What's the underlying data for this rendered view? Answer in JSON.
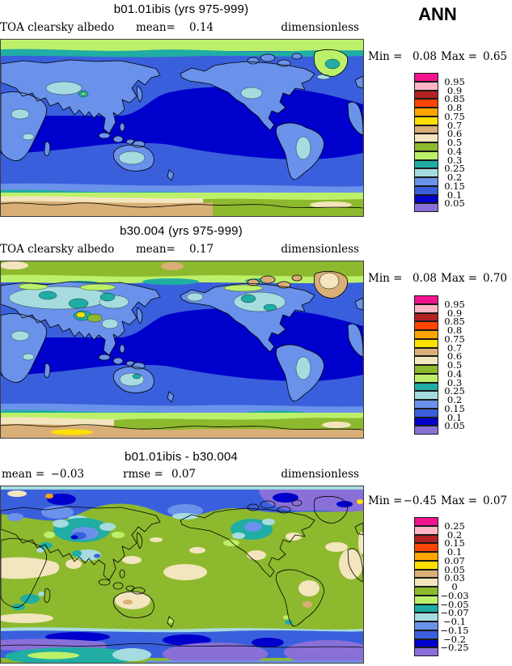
{
  "season": "ANN",
  "palette": [
    "#F2138E",
    "#FFB5C5",
    "#B22222",
    "#FF4500",
    "#FFA500",
    "#FFDF00",
    "#D8AF76",
    "#F3E5BE",
    "#8DB92E",
    "#BDF06A",
    "#1FADA4",
    "#A6DCDF",
    "#6A92EA",
    "#3A5FDC",
    "#0000CC",
    "#8970D8"
  ],
  "panels": [
    {
      "title": "b01.01ibis (yrs 975-999)",
      "var_label": "TOA clearsky albedo",
      "stats": [
        {
          "label": "mean=",
          "value": "0.14"
        }
      ],
      "units": "dimensionless",
      "min_label": "Min =",
      "min_value": "0.08",
      "max_label": "Max =",
      "max_value": "0.65",
      "legend_labels": [
        "0.95",
        "0.9",
        "0.85",
        "0.8",
        "0.75",
        "0.7",
        "0.6",
        "0.5",
        "0.4",
        "0.3",
        "0.25",
        "0.2",
        "0.15",
        "0.1",
        "0.05"
      ]
    },
    {
      "title": "b30.004 (yrs 975-999)",
      "var_label": "TOA clearsky albedo",
      "stats": [
        {
          "label": "mean=",
          "value": "0.17"
        }
      ],
      "units": "dimensionless",
      "min_label": "Min =",
      "min_value": "0.08",
      "max_label": "Max =",
      "max_value": "0.70",
      "legend_labels": [
        "0.95",
        "0.9",
        "0.85",
        "0.8",
        "0.75",
        "0.7",
        "0.6",
        "0.5",
        "0.4",
        "0.3",
        "0.25",
        "0.2",
        "0.15",
        "0.1",
        "0.05"
      ]
    },
    {
      "title": "b01.01ibis - b30.004",
      "var_label": "",
      "stats": [
        {
          "label": "mean =",
          "value": "−0.03"
        },
        {
          "label": "rmse =",
          "value": "0.07"
        }
      ],
      "units": "dimensionless",
      "min_label": "Min =",
      "min_value": "−0.45",
      "max_label": "Max =",
      "max_value": "0.07",
      "legend_labels": [
        "0.25",
        "0.2",
        "0.15",
        "0.1",
        "0.07",
        "0.05",
        "0.03",
        "0",
        "−0.03",
        "−0.05",
        "−0.07",
        "−0.1",
        "−0.15",
        "−0.2",
        "−0.25"
      ]
    }
  ],
  "chart_data": [
    {
      "type": "heatmap",
      "subtype": "filled-contour global map, equirectangular, Pacific-centered",
      "title": "b01.01ibis (yrs 975-999)",
      "variable": "TOA clearsky albedo",
      "season": "ANN",
      "units": "dimensionless",
      "mean": 0.14,
      "min": 0.08,
      "max": 0.65,
      "contour_levels": [
        0.05,
        0.1,
        0.15,
        0.2,
        0.25,
        0.3,
        0.4,
        0.5,
        0.6,
        0.7,
        0.75,
        0.8,
        0.85,
        0.9,
        0.95
      ],
      "colors_low_to_high": [
        "#8970D8",
        "#0000CC",
        "#3A5FDC",
        "#6A92EA",
        "#A6DCDF",
        "#1FADA4",
        "#BDF06A",
        "#8DB92E",
        "#F3E5BE",
        "#D8AF76",
        "#FFDF00",
        "#FFA500",
        "#FF4500",
        "#B22222",
        "#FFB5C5",
        "#F2138E"
      ],
      "legend_position": "right"
    },
    {
      "type": "heatmap",
      "subtype": "filled-contour global map, equirectangular, Pacific-centered",
      "title": "b30.004 (yrs 975-999)",
      "variable": "TOA clearsky albedo",
      "season": "ANN",
      "units": "dimensionless",
      "mean": 0.17,
      "min": 0.08,
      "max": 0.7,
      "contour_levels": [
        0.05,
        0.1,
        0.15,
        0.2,
        0.25,
        0.3,
        0.4,
        0.5,
        0.6,
        0.7,
        0.75,
        0.8,
        0.85,
        0.9,
        0.95
      ],
      "colors_low_to_high": [
        "#8970D8",
        "#0000CC",
        "#3A5FDC",
        "#6A92EA",
        "#A6DCDF",
        "#1FADA4",
        "#BDF06A",
        "#8DB92E",
        "#F3E5BE",
        "#D8AF76",
        "#FFDF00",
        "#FFA500",
        "#FF4500",
        "#B22222",
        "#FFB5C5",
        "#F2138E"
      ],
      "legend_position": "right"
    },
    {
      "type": "heatmap",
      "subtype": "filled-contour global difference map, equirectangular, Pacific-centered",
      "title": "b01.01ibis - b30.004",
      "variable": "TOA clearsky albedo difference",
      "season": "ANN",
      "units": "dimensionless",
      "mean": -0.03,
      "rmse": 0.07,
      "min": -0.45,
      "max": 0.07,
      "contour_levels": [
        -0.25,
        -0.2,
        -0.15,
        -0.1,
        -0.07,
        -0.05,
        -0.03,
        0,
        0.03,
        0.05,
        0.07,
        0.1,
        0.15,
        0.2,
        0.25
      ],
      "colors_low_to_high": [
        "#8970D8",
        "#0000CC",
        "#3A5FDC",
        "#6A92EA",
        "#A6DCDF",
        "#1FADA4",
        "#BDF06A",
        "#8DB92E",
        "#F3E5BE",
        "#D8AF76",
        "#FFDF00",
        "#FFA500",
        "#FF4500",
        "#B22222",
        "#FFB5C5",
        "#F2138E"
      ],
      "legend_position": "right"
    }
  ]
}
